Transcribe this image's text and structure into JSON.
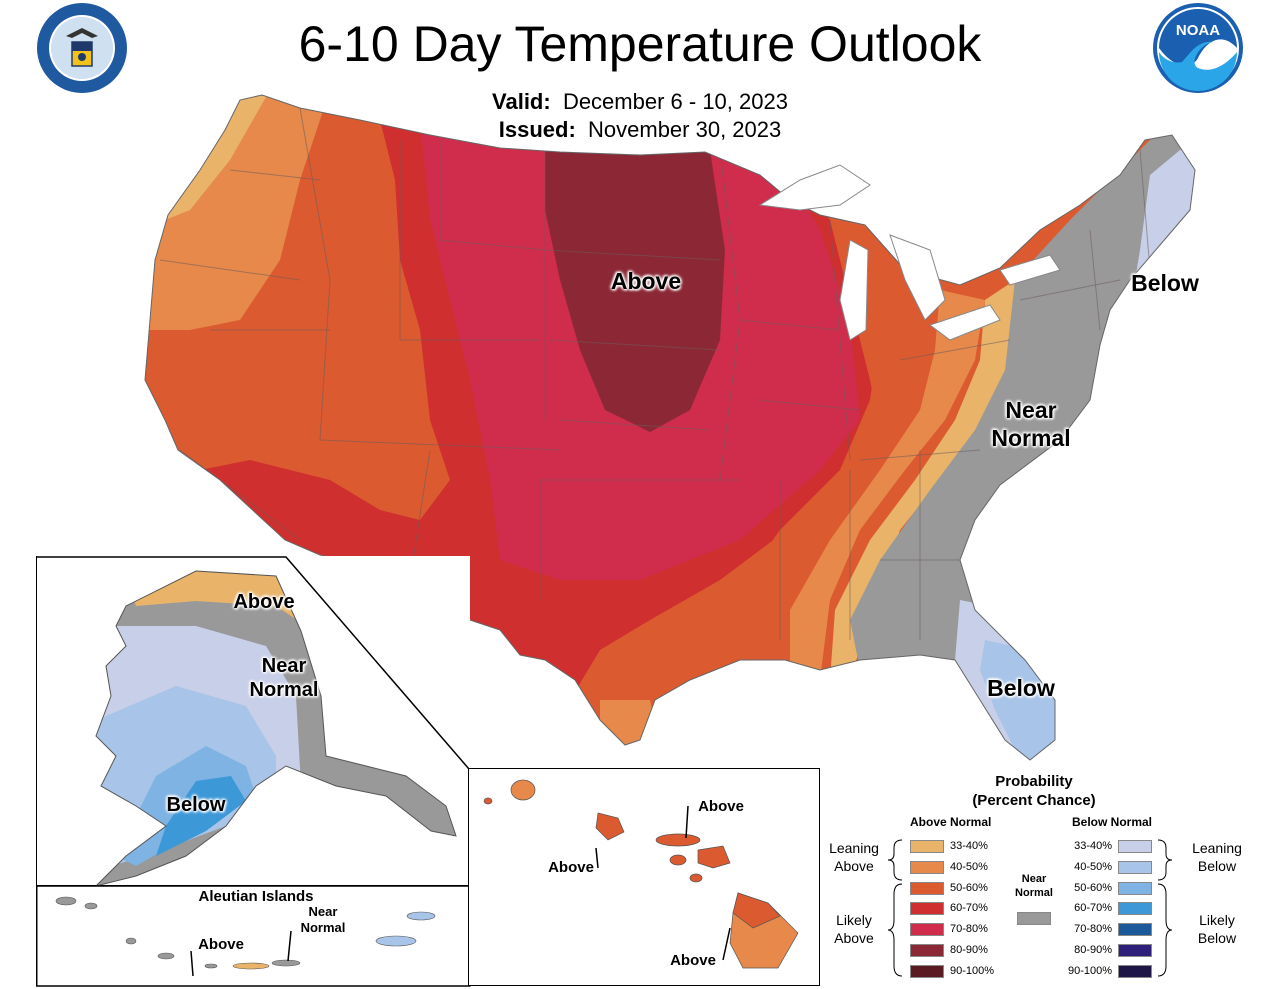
{
  "header": {
    "title": "6-10 Day Temperature Outlook",
    "valid_label": "Valid:",
    "valid_value": "December 6 - 10, 2023",
    "issued_label": "Issued:",
    "issued_value": "November 30, 2023"
  },
  "logos": {
    "left": "department-of-commerce-seal",
    "right": "noaa-logo",
    "right_text": "NOAA"
  },
  "conus_labels": {
    "above": "Above",
    "below_ne": "Below",
    "near_normal_line1": "Near",
    "near_normal_line2": "Normal",
    "below_fl": "Below"
  },
  "alaska": {
    "above": "Above",
    "near_line1": "Near",
    "near_line2": "Normal",
    "below": "Below"
  },
  "aleutian": {
    "title": "Aleutian Islands",
    "above": "Above",
    "near_line1": "Near",
    "near_line2": "Normal"
  },
  "hawaii": {
    "above_top": "Above",
    "above_left": "Above",
    "above_bottom": "Above"
  },
  "legend": {
    "title_line1": "Probability",
    "title_line2": "(Percent Chance)",
    "above_header": "Above Normal",
    "below_header": "Below Normal",
    "near_header_line1": "Near",
    "near_header_line2": "Normal",
    "leaning_above_line1": "Leaning",
    "leaning_above_line2": "Above",
    "likely_above_line1": "Likely",
    "likely_above_line2": "Above",
    "leaning_below_line1": "Leaning",
    "leaning_below_line2": "Below",
    "likely_below_line1": "Likely",
    "likely_below_line2": "Below",
    "above_bins": [
      {
        "label": "33-40%",
        "color": "#e9b46a"
      },
      {
        "label": "40-50%",
        "color": "#e6894a"
      },
      {
        "label": "50-60%",
        "color": "#db5a30"
      },
      {
        "label": "60-70%",
        "color": "#cf2f2f"
      },
      {
        "label": "70-80%",
        "color": "#d02c4c"
      },
      {
        "label": "80-90%",
        "color": "#8c2836"
      },
      {
        "label": "90-100%",
        "color": "#5a1a22"
      }
    ],
    "below_bins": [
      {
        "label": "33-40%",
        "color": "#c8cfe8"
      },
      {
        "label": "40-50%",
        "color": "#a8c4e8"
      },
      {
        "label": "50-60%",
        "color": "#7fb3e3"
      },
      {
        "label": "60-70%",
        "color": "#3d98d8"
      },
      {
        "label": "70-80%",
        "color": "#1b5a9a"
      },
      {
        "label": "80-90%",
        "color": "#2d1f7a"
      },
      {
        "label": "90-100%",
        "color": "#1f1648"
      }
    ],
    "near_color": "#999999"
  }
}
